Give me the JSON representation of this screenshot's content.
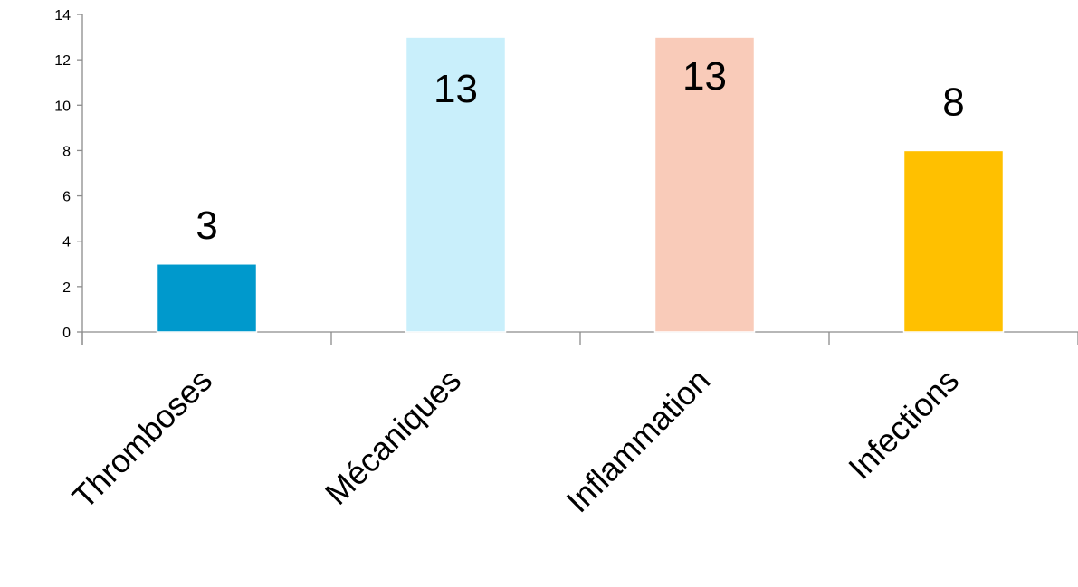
{
  "chart_data": {
    "type": "bar",
    "categories": [
      "Thromboses",
      "Mécaniques",
      "Inflammation",
      "Infections"
    ],
    "values": [
      3,
      13,
      13,
      8
    ],
    "data_labels": [
      "3",
      "13",
      "13",
      "8"
    ],
    "colors": [
      "#0099cc",
      "#c9effb",
      "#f9cbb9",
      "#ffc000"
    ],
    "yticks": [
      "0",
      "2",
      "4",
      "6",
      "8",
      "10",
      "12",
      "14"
    ],
    "ylim": [
      0,
      14
    ],
    "grid": false,
    "legend": "none"
  }
}
